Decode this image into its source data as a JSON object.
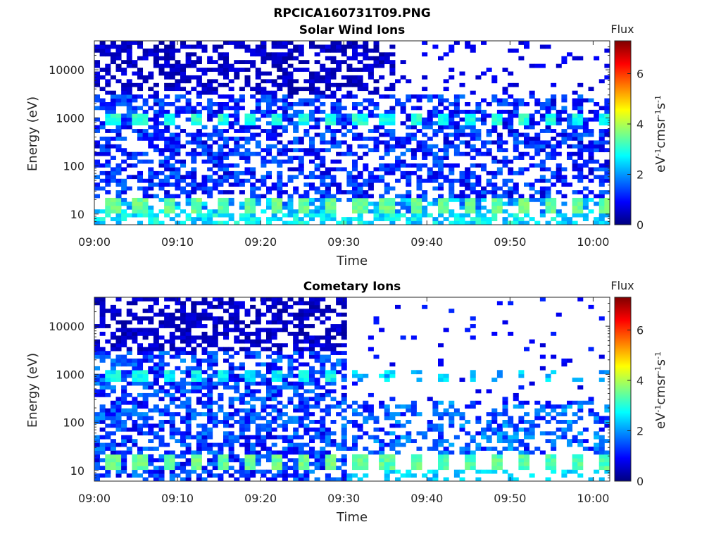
{
  "figure_title": "RPCICA160731T09.PNG",
  "colormap": [
    "#00007f",
    "#0000ff",
    "#007fff",
    "#00ffff",
    "#7fff7f",
    "#ffff00",
    "#ff7f00",
    "#ff0000",
    "#7f0000"
  ],
  "chart_data": [
    {
      "type": "heatmap",
      "title": "Solar Wind Ions",
      "xlabel": "Time",
      "ylabel": "Energy (eV)",
      "y_scale": "log",
      "xlim": [
        "09:00",
        "10:02"
      ],
      "ylim": [
        6,
        40000
      ],
      "x_ticks": [
        "09:00",
        "09:10",
        "09:20",
        "09:30",
        "09:40",
        "09:50",
        "10:00"
      ],
      "y_ticks": [
        "10",
        "100",
        "1000",
        "10000"
      ],
      "colorbar": {
        "title": "Flux",
        "label": "eV-1cm-2sr-1s-1",
        "range": [
          0,
          7.3
        ],
        "ticks": [
          "0",
          "2",
          "4",
          "6"
        ]
      },
      "description": "Patchy sparse flux across all energies; periodic bright bands near 1000 eV (~3) and 10-20 eV (~3.5); high-energy dark-blue noise ceases above ~3000 eV after 09:36.",
      "noise_end_time": "09:36"
    },
    {
      "type": "heatmap",
      "title": "Cometary Ions",
      "xlabel": "Time",
      "ylabel": "Energy (eV)",
      "y_scale": "log",
      "xlim": [
        "09:00",
        "10:02"
      ],
      "ylim": [
        6,
        40000
      ],
      "x_ticks": [
        "09:00",
        "09:10",
        "09:20",
        "09:30",
        "09:40",
        "09:50",
        "10:00"
      ],
      "y_ticks": [
        "10",
        "100",
        "1000",
        "10000"
      ],
      "colorbar": {
        "title": "Flux",
        "label": "eV-1cm-2sr-1s-1",
        "range": [
          0,
          7.3
        ],
        "ticks": [
          "0",
          "2",
          "4",
          "6"
        ]
      },
      "description": "Dense low-level flux at all energies before 09:30 with periodic bands near 1000 eV and 10-20 eV; after 09:30 only sparse flux, mostly below ~300 eV.",
      "noise_end_time": "09:30"
    }
  ]
}
